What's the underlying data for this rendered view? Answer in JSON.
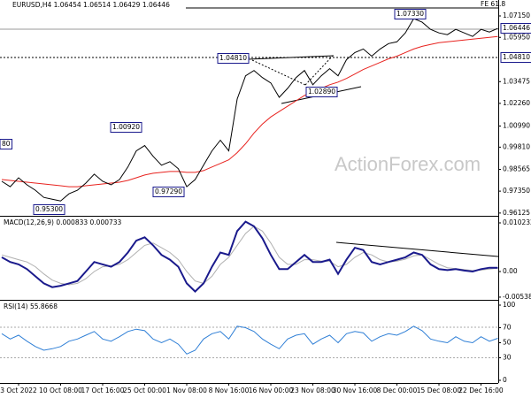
{
  "chart_data": [
    {
      "type": "line",
      "title": "EURUSD,H4  1.06454 1.06514 1.06429 1.06446",
      "annotations": [
        "FE 61.8",
        "1.07330",
        "1.04810",
        "1.02890",
        "1.00920",
        "0.97290",
        "0.95300",
        "80",
        "1.06446",
        "1.04810"
      ],
      "watermark": "ActionForex.com",
      "series": [
        {
          "color": "#000000",
          "values": [
            0.979,
            0.976,
            0.981,
            0.977,
            0.974,
            0.97,
            0.969,
            0.968,
            0.972,
            0.974,
            0.978,
            0.983,
            0.979,
            0.977,
            0.98,
            0.987,
            0.996,
            0.999,
            0.993,
            0.988,
            0.99,
            0.986,
            0.976,
            0.98,
            0.988,
            0.996,
            1.002,
            0.996,
            1.025,
            1.038,
            1.041,
            1.037,
            1.034,
            1.026,
            1.031,
            1.037,
            1.041,
            1.033,
            1.038,
            1.042,
            1.038,
            1.047,
            1.051,
            1.053,
            1.049,
            1.053,
            1.056,
            1.057,
            1.062,
            1.07,
            1.068,
            1.064,
            1.062,
            1.061,
            1.064,
            1.062,
            1.06,
            1.064,
            1.0625,
            1.0645
          ]
        },
        {
          "color": "#e8231f",
          "values": [
            0.98,
            0.9795,
            0.979,
            0.9785,
            0.978,
            0.9775,
            0.977,
            0.9765,
            0.976,
            0.976,
            0.9765,
            0.977,
            0.9775,
            0.978,
            0.9785,
            0.9795,
            0.981,
            0.9825,
            0.9835,
            0.984,
            0.9845,
            0.9845,
            0.984,
            0.984,
            0.985,
            0.987,
            0.989,
            0.991,
            0.995,
            1.0,
            1.006,
            1.011,
            1.015,
            1.018,
            1.021,
            1.024,
            1.027,
            1.029,
            1.031,
            1.033,
            1.0345,
            1.0365,
            1.039,
            1.0415,
            1.0435,
            1.0455,
            1.0475,
            1.049,
            1.051,
            1.053,
            1.0545,
            1.0555,
            1.0565,
            1.057,
            1.0575,
            1.058,
            1.0585,
            1.059,
            1.0595,
            1.06
          ]
        }
      ],
      "ylim": [
        0.9602,
        1.0804
      ],
      "yticks": [
        {
          "value": 1.0715,
          "label": "1.07150"
        },
        {
          "value": 1.0595,
          "label": "1.05950"
        },
        1.03475,
        {
          "value": 1.0226,
          "label": "1.02260"
        },
        {
          "value": 1.0099,
          "label": "1.00990"
        },
        {
          "value": 0.9981,
          "label": "0.99810"
        },
        0.98565,
        {
          "value": 0.9735,
          "label": "0.97350"
        },
        0.96125
      ]
    },
    {
      "type": "line",
      "title": "MACD(12,26,9) 0.000833 0.000733",
      "series": [
        {
          "color": "#1a1a8c",
          "values": [
            0.003,
            0.002,
            0.0015,
            0.0005,
            -0.001,
            -0.0025,
            -0.0033,
            -0.003,
            -0.0025,
            -0.002,
            0.0,
            0.002,
            0.0015,
            0.001,
            0.002,
            0.004,
            0.0065,
            0.0072,
            0.0055,
            0.0035,
            0.0025,
            0.001,
            -0.0025,
            -0.0042,
            -0.0025,
            0.001,
            0.004,
            0.0035,
            0.0085,
            0.0105,
            0.0095,
            0.007,
            0.0035,
            0.0005,
            0.0005,
            0.002,
            0.0035,
            0.002,
            0.002,
            0.0025,
            -0.0005,
            0.0025,
            0.005,
            0.0045,
            0.002,
            0.0015,
            0.002,
            0.0025,
            0.003,
            0.004,
            0.0035,
            0.0015,
            0.0005,
            0.0003,
            0.0005,
            0.0002,
            0.0,
            0.0005,
            0.0008,
            0.0008
          ]
        },
        {
          "color": "#b0b0b0",
          "values": [
            0.0035,
            0.003,
            0.0025,
            0.002,
            0.001,
            -0.0005,
            -0.0018,
            -0.0025,
            -0.0028,
            -0.0025,
            -0.0015,
            0.0,
            0.001,
            0.0012,
            0.0015,
            0.0025,
            0.004,
            0.0055,
            0.006,
            0.005,
            0.004,
            0.0025,
            0.0,
            -0.002,
            -0.0025,
            -0.001,
            0.0015,
            0.003,
            0.0055,
            0.008,
            0.0095,
            0.0085,
            0.006,
            0.003,
            0.0015,
            0.0015,
            0.0025,
            0.0025,
            0.0022,
            0.0022,
            0.001,
            0.0015,
            0.003,
            0.004,
            0.0035,
            0.0025,
            0.002,
            0.0022,
            0.0026,
            0.0033,
            0.0035,
            0.0025,
            0.0015,
            0.0008,
            0.0006,
            0.0004,
            0.0002,
            0.0003,
            0.0005,
            0.0007
          ]
        }
      ],
      "ylim": [
        -0.00577,
        0.01135
      ],
      "yticks": [
        0.010232,
        {
          "value": 0,
          "label": "0.00"
        },
        -0.005389
      ]
    },
    {
      "type": "line",
      "title": "RSI(14) 55.8668",
      "series": [
        {
          "color": "#2f7fd6",
          "values": [
            62,
            55,
            60,
            52,
            45,
            40,
            42,
            45,
            52,
            55,
            60,
            65,
            55,
            52,
            58,
            65,
            68,
            66,
            55,
            50,
            55,
            48,
            35,
            40,
            55,
            62,
            65,
            55,
            72,
            70,
            65,
            55,
            48,
            42,
            55,
            60,
            62,
            48,
            55,
            60,
            50,
            62,
            65,
            63,
            52,
            58,
            62,
            60,
            65,
            72,
            66,
            55,
            52,
            50,
            58,
            52,
            50,
            58,
            52,
            55.8668
          ]
        }
      ],
      "ylim": [
        0,
        100
      ],
      "yticks": [
        100,
        70,
        50,
        30,
        0
      ],
      "categories": [
        null,
        null,
        "3 Oct 2022",
        null,
        null,
        null,
        null,
        "10 Oct 08:00",
        null,
        null,
        null,
        null,
        "17 Oct 16:00",
        null,
        null,
        null,
        null,
        "25 Oct 00:00",
        null,
        null,
        null,
        null,
        "1 Nov 08:00",
        null,
        null,
        null,
        null,
        "8 Nov 16:00",
        null,
        null,
        null,
        null,
        "16 Nov 00:00",
        null,
        null,
        null,
        null,
        "23 Nov 08:00",
        null,
        null,
        null,
        null,
        "30 Nov 16:00",
        null,
        null,
        null,
        null,
        "8 Dec 00:00",
        null,
        null,
        null,
        null,
        "15 Dec 08:00",
        null,
        null,
        null,
        null,
        "22 Dec 16:00",
        null,
        null
      ]
    }
  ]
}
